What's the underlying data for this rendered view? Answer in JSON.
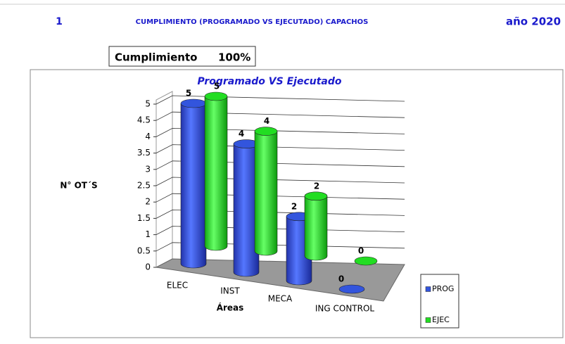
{
  "header": {
    "number": "1",
    "title": "CUMPLIMIENTO (PROGRAMADO VS EJECUTADO) CAPACHOS",
    "year": "año 2020",
    "kpi_label": "Cumplimiento",
    "kpi_value": "100%"
  },
  "chart_data": {
    "type": "bar3d",
    "title": "Programado VS Ejecutado",
    "y_label": "N° OT´S",
    "x_label": "Áreas",
    "categories": [
      "ELEC",
      "INST",
      "MECA",
      "ING CONTROL"
    ],
    "series": [
      {
        "name": "PROG",
        "color": "#3355dd",
        "values": [
          5,
          4,
          2,
          0
        ]
      },
      {
        "name": "EJEC",
        "color": "#22dd22",
        "values": [
          5,
          4,
          2,
          0
        ]
      }
    ],
    "ylim": [
      0,
      5
    ],
    "yticks": [
      0,
      0.5,
      1,
      1.5,
      2,
      2.5,
      3,
      3.5,
      4,
      4.5,
      5
    ],
    "grid": true,
    "legend": "bottom-right"
  }
}
